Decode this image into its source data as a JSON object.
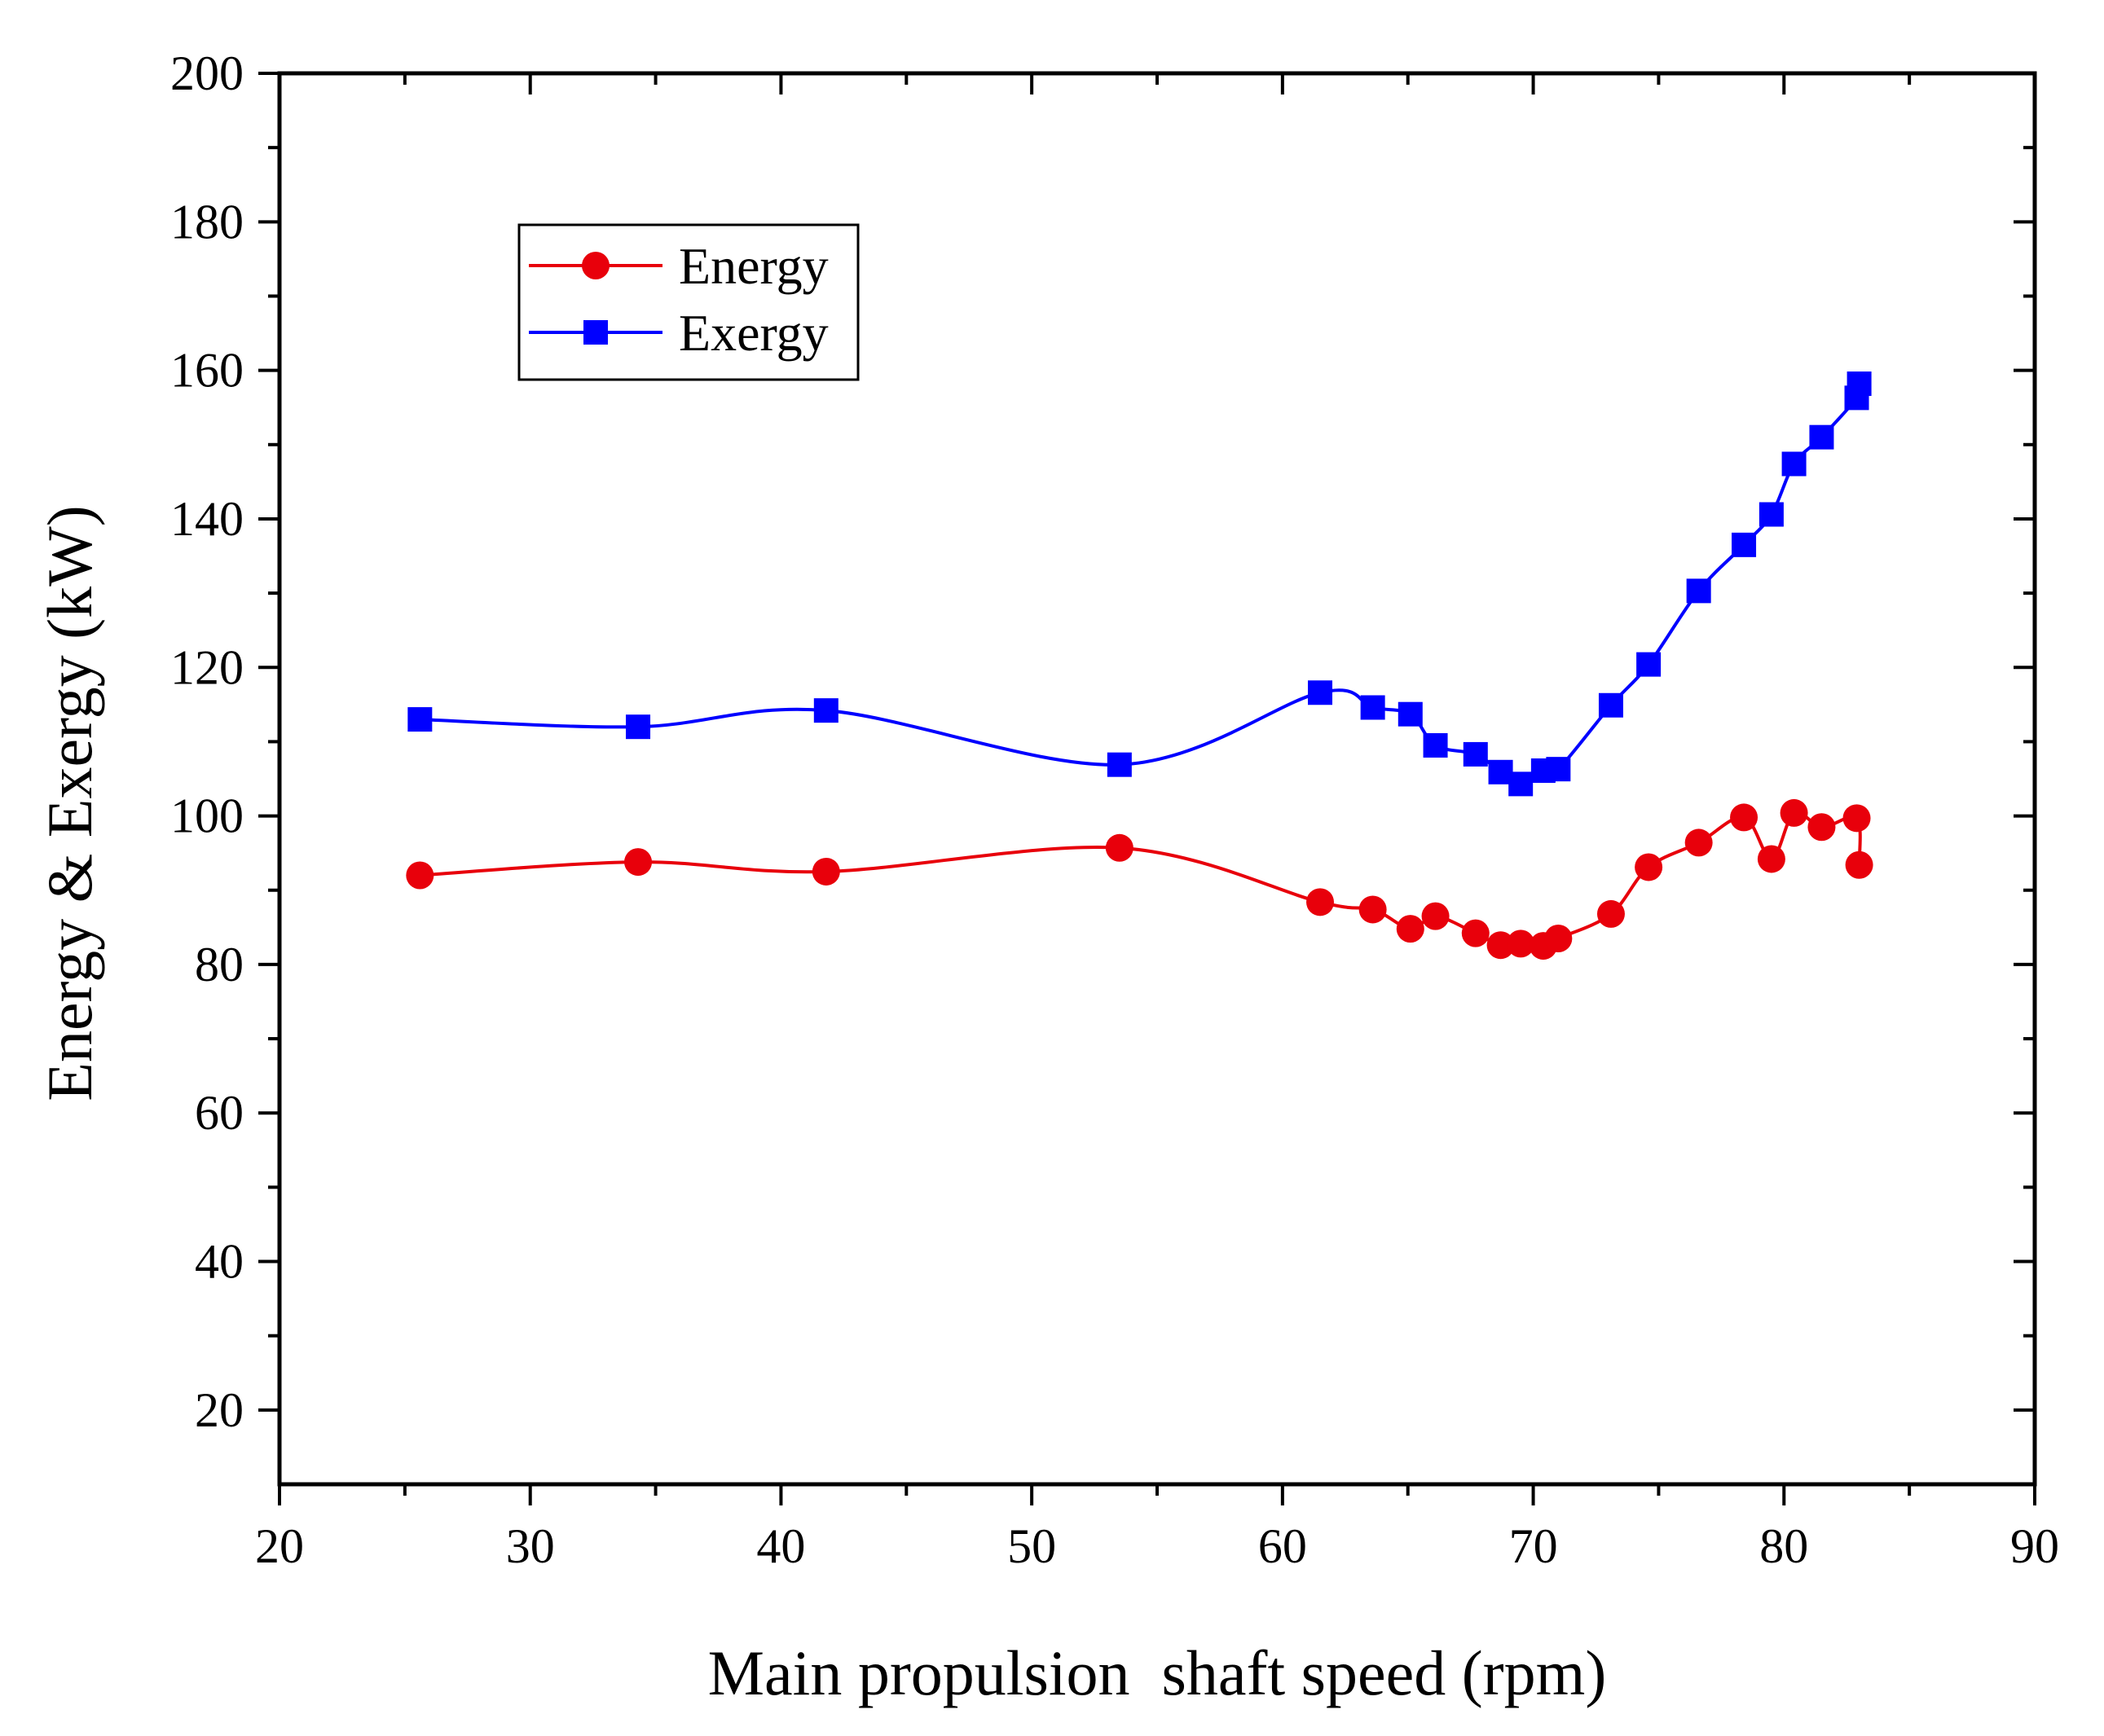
{
  "chart_data": {
    "type": "line",
    "title": "",
    "xlabel": "Main propulsion  shaft speed (rpm)",
    "ylabel": "Energy & Exergy (kW)",
    "xlim": [
      20,
      90
    ],
    "ylim": [
      10,
      200
    ],
    "xticks": [
      20,
      30,
      40,
      50,
      60,
      70,
      80,
      90
    ],
    "yticks": [
      20,
      40,
      60,
      80,
      100,
      120,
      140,
      160,
      180,
      200
    ],
    "grid": false,
    "legend_position": "top-left",
    "series": [
      {
        "name": "Energy",
        "color": "#e8000b",
        "marker": "circle",
        "x": [
          25.6,
          34.3,
          41.8,
          53.5,
          61.5,
          63.6,
          65.1,
          66.1,
          67.7,
          68.7,
          69.5,
          70.4,
          71.0,
          73.1,
          74.6,
          76.6,
          78.4,
          79.5,
          80.4,
          81.5,
          82.9,
          83.0
        ],
        "y": [
          92.0,
          93.8,
          92.5,
          95.7,
          88.4,
          87.4,
          84.8,
          86.5,
          84.2,
          82.6,
          82.8,
          82.5,
          83.5,
          86.8,
          93.1,
          96.4,
          99.8,
          94.2,
          100.4,
          98.5,
          99.7,
          93.4
        ]
      },
      {
        "name": "Exergy",
        "color": "#0000ff",
        "marker": "square",
        "x": [
          25.6,
          34.3,
          41.8,
          53.5,
          61.5,
          63.6,
          65.1,
          66.1,
          67.7,
          68.7,
          69.5,
          70.4,
          71.0,
          73.1,
          74.6,
          76.6,
          78.4,
          79.5,
          80.4,
          81.5,
          82.9,
          83.0
        ],
        "y": [
          113.0,
          112.0,
          114.2,
          106.9,
          116.6,
          114.6,
          113.7,
          109.5,
          108.3,
          105.9,
          104.3,
          106.1,
          106.3,
          114.9,
          120.4,
          130.3,
          136.5,
          140.6,
          147.4,
          151.0,
          156.3,
          158.2
        ]
      }
    ]
  }
}
